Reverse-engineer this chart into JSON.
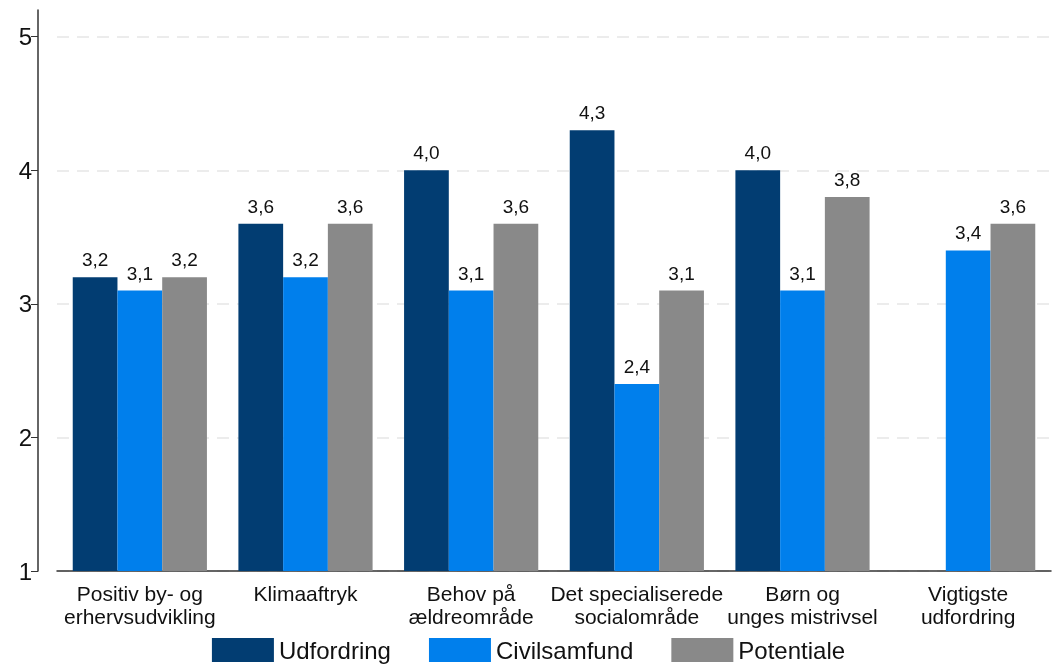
{
  "chart_data": {
    "type": "bar",
    "categories": [
      "Positiv by- og\nerhervsudvikling",
      "Klimaaftryk",
      "Behov på\nældreområde",
      "Det specialiserede\nsocialområde",
      "Børn og\nunges mistrivsel",
      "Vigtigste\nudfordring"
    ],
    "series": [
      {
        "name": "Udfordring",
        "color": "#023d72",
        "values": [
          3.2,
          3.6,
          4.0,
          4.3,
          4.0,
          null
        ],
        "value_labels": [
          "3,2",
          "3,6",
          "4,0",
          "4,3",
          "4,0",
          null
        ]
      },
      {
        "name": "Civilsamfund",
        "color": "#007fec",
        "values": [
          3.1,
          3.2,
          3.1,
          2.4,
          3.1,
          3.4
        ],
        "value_labels": [
          "3,1",
          "3,2",
          "3,1",
          "2,4",
          "3,1",
          "3,4"
        ]
      },
      {
        "name": "Potentiale",
        "color": "#898989",
        "values": [
          3.2,
          3.6,
          3.6,
          3.1,
          3.8,
          3.6
        ],
        "value_labels": [
          "3,2",
          "3,6",
          "3,6",
          "3,1",
          "3,8",
          "3,6"
        ]
      }
    ],
    "ylim": [
      1,
      5.2
    ],
    "yticks": [
      1,
      2,
      3,
      4,
      5
    ],
    "grid": "y",
    "legend": "bottom"
  }
}
